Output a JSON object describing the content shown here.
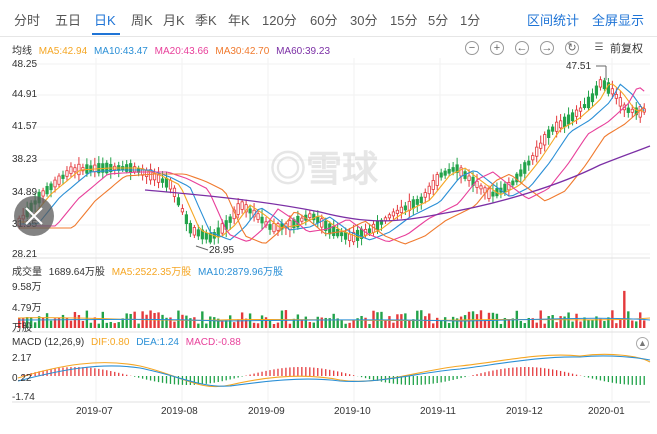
{
  "tabs": [
    {
      "label": "分时"
    },
    {
      "label": "五日"
    },
    {
      "label": "日K",
      "active": true
    },
    {
      "label": "周K"
    },
    {
      "label": "月K"
    },
    {
      "label": "季K"
    },
    {
      "label": "年K"
    },
    {
      "label": "120分"
    },
    {
      "label": "60分"
    },
    {
      "label": "30分"
    },
    {
      "label": "15分"
    },
    {
      "label": "5分"
    },
    {
      "label": "1分"
    }
  ],
  "links": {
    "interval_stats": "区间统计",
    "fullscreen": "全屏显示"
  },
  "ma_legend": {
    "title": "均线",
    "items": [
      {
        "text": "MA5:42.94",
        "color": "#f5a623"
      },
      {
        "text": "MA10:43.47",
        "color": "#2a8fd6"
      },
      {
        "text": "MA20:43.66",
        "color": "#e83f9a"
      },
      {
        "text": "MA30:42.70",
        "color": "#f07a2e"
      },
      {
        "text": "MA60:39.23",
        "color": "#7b2fa5"
      }
    ]
  },
  "controls": {
    "minus": "−",
    "plus": "+",
    "left": "←",
    "right": "→",
    "reset": "↻",
    "adjust": "前复权"
  },
  "price_axis": [
    "48.25",
    "44.91",
    "41.57",
    "38.23",
    "34.89",
    "31.55",
    "28.21"
  ],
  "annotations": {
    "high": "47.51",
    "low": "28.95"
  },
  "volume": {
    "title": "成交量",
    "value": "1689.64万股",
    "items": [
      {
        "text": "MA5:2522.35万股",
        "color": "#f5a623"
      },
      {
        "text": "MA10:2879.96万股",
        "color": "#2a8fd6"
      }
    ],
    "axis": [
      "9.58万",
      "4.79万",
      "万股"
    ]
  },
  "macd": {
    "title": "MACD",
    "params": "(12,26,9)",
    "items": [
      {
        "text": "DIF:0.80",
        "color": "#f5a623"
      },
      {
        "text": "DEA:1.24",
        "color": "#2a8fd6"
      },
      {
        "text": "MACD:-0.88",
        "color": "#e83f9a"
      }
    ],
    "axis": [
      "2.17",
      "0.22",
      "-1.74"
    ]
  },
  "x_axis": [
    "2019-07",
    "2019-08",
    "2019-09",
    "2019-10",
    "2019-11",
    "2019-12",
    "2020-01"
  ],
  "watermark": "雪球",
  "colors": {
    "up": "#e4393c",
    "down": "#22a34a",
    "accent": "#1f74d6"
  }
}
